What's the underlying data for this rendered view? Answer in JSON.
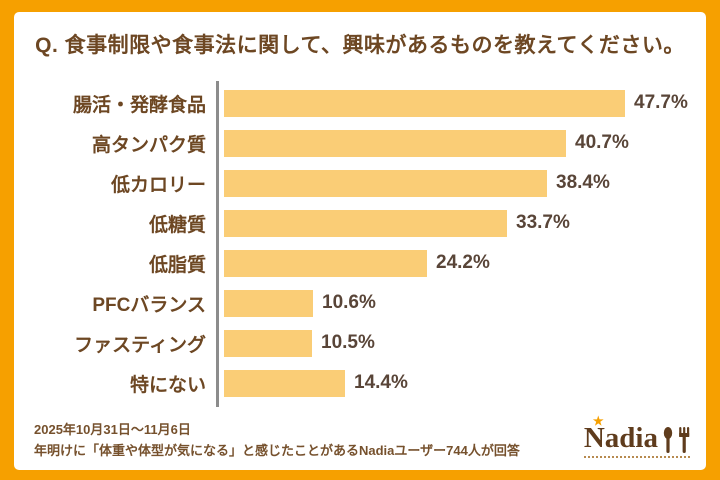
{
  "title": "Q. 食事制限や食事法に関して、興味があるものを教えてください。",
  "chart_data": {
    "type": "bar",
    "orientation": "horizontal",
    "categories": [
      "腸活・発酵食品",
      "高タンパク質",
      "低カロリー",
      "低糖質",
      "低脂質",
      "PFCバランス",
      "ファスティング",
      "特にない"
    ],
    "values": [
      47.7,
      40.7,
      38.4,
      33.7,
      24.2,
      10.6,
      10.5,
      14.4
    ],
    "value_labels": [
      "47.7%",
      "40.7%",
      "38.4%",
      "33.7%",
      "24.2%",
      "10.6%",
      "10.5%",
      "14.4%"
    ],
    "xlabel": "",
    "ylabel": "",
    "xlim": [
      0,
      50
    ],
    "grid": false,
    "legend": false,
    "bar_color": "#FACD76",
    "axis_color": "#8C8C8C"
  },
  "footer": {
    "period": "2025年10月31日〜11月6日",
    "note": "年明けに「体重や体型が気になる」と感じたことがあるNadiaユーザー744人が回答"
  },
  "logo": {
    "text": "Nadia",
    "star_glyph": "★",
    "utensils_icon": "spoon-and-fork"
  },
  "colors": {
    "frame_orange": "#F6A000",
    "panel_white": "#FFFFFF",
    "title_brown": "#6D4723",
    "value_brown": "#594538",
    "footer_brown": "#76512D",
    "logo_brown": "#5F3C1D"
  }
}
